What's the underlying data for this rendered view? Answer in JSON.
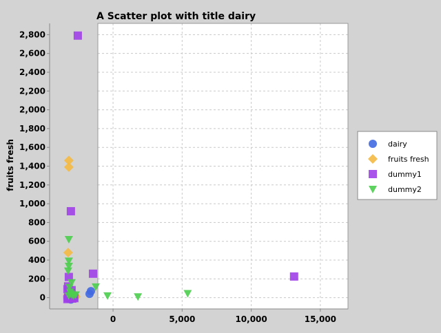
{
  "chart_data": {
    "type": "scatter",
    "title": "A Scatter plot with title dairy",
    "xlabel": "",
    "ylabel": "fruits fresh",
    "xlim": [
      -1100,
      17000
    ],
    "ylim": [
      -120,
      2920
    ],
    "x_ticks": [
      0,
      5000,
      10000,
      15000
    ],
    "x_tick_labels": [
      "0",
      "5,000",
      "10,000",
      "15,000"
    ],
    "y_ticks": [
      0,
      200,
      400,
      600,
      800,
      1000,
      1200,
      1400,
      1600,
      1800,
      2000,
      2200,
      2400,
      2600,
      2800
    ],
    "y_tick_labels": [
      "0",
      "200",
      "400",
      "600",
      "800",
      "1,000",
      "1,200",
      "1,400",
      "1,600",
      "1,800",
      "2,000",
      "2,200",
      "2,400",
      "2,600",
      "2,800"
    ],
    "grid": true,
    "legend_position": "right",
    "series": [
      {
        "name": "dairy",
        "marker": "circle",
        "color": "#4169e1",
        "points": [
          [
            -3300,
            0
          ],
          [
            -3200,
            10
          ],
          [
            -3100,
            5
          ],
          [
            -3000,
            20
          ],
          [
            -2950,
            30
          ],
          [
            -3250,
            -10
          ],
          [
            -3050,
            -20
          ],
          [
            -2900,
            15
          ],
          [
            -1700,
            40
          ],
          [
            -1600,
            70
          ],
          [
            -3150,
            0
          ],
          [
            -3000,
            5
          ]
        ]
      },
      {
        "name": "fruits fresh",
        "marker": "diamond",
        "color": "#f4b942",
        "points": [
          [
            -3200,
            1460
          ],
          [
            -3200,
            1390
          ],
          [
            -3250,
            480
          ],
          [
            -3300,
            10
          ],
          [
            -3250,
            30
          ],
          [
            -3150,
            25
          ],
          [
            -3050,
            40
          ],
          [
            -2900,
            20
          ],
          [
            -2750,
            25
          ],
          [
            -2700,
            10
          ]
        ]
      },
      {
        "name": "dummy1",
        "marker": "square",
        "color": "#a040e8",
        "points": [
          [
            -2550,
            2790
          ],
          [
            -3050,
            920
          ],
          [
            -1450,
            255
          ],
          [
            13100,
            225
          ],
          [
            -3200,
            220
          ],
          [
            -3250,
            120
          ],
          [
            -3300,
            90
          ],
          [
            -3200,
            60
          ],
          [
            -3050,
            50
          ],
          [
            -3100,
            20
          ],
          [
            -3250,
            0
          ],
          [
            -3300,
            -15
          ],
          [
            -2950,
            -10
          ],
          [
            -2850,
            5
          ],
          [
            -2800,
            -5
          ],
          [
            -3000,
            80
          ]
        ]
      },
      {
        "name": "dummy2",
        "marker": "triangle-down",
        "color": "#4ccd4c",
        "points": [
          [
            -3200,
            620
          ],
          [
            -3200,
            390
          ],
          [
            -3200,
            335
          ],
          [
            -3250,
            285
          ],
          [
            -3000,
            160
          ],
          [
            -3150,
            110
          ],
          [
            -3100,
            60
          ],
          [
            -3050,
            40
          ],
          [
            -2950,
            30
          ],
          [
            -3200,
            20
          ],
          [
            -2850,
            20
          ],
          [
            -2700,
            30
          ],
          [
            -1250,
            115
          ],
          [
            -400,
            20
          ],
          [
            1800,
            10
          ],
          [
            5400,
            45
          ]
        ]
      }
    ]
  }
}
